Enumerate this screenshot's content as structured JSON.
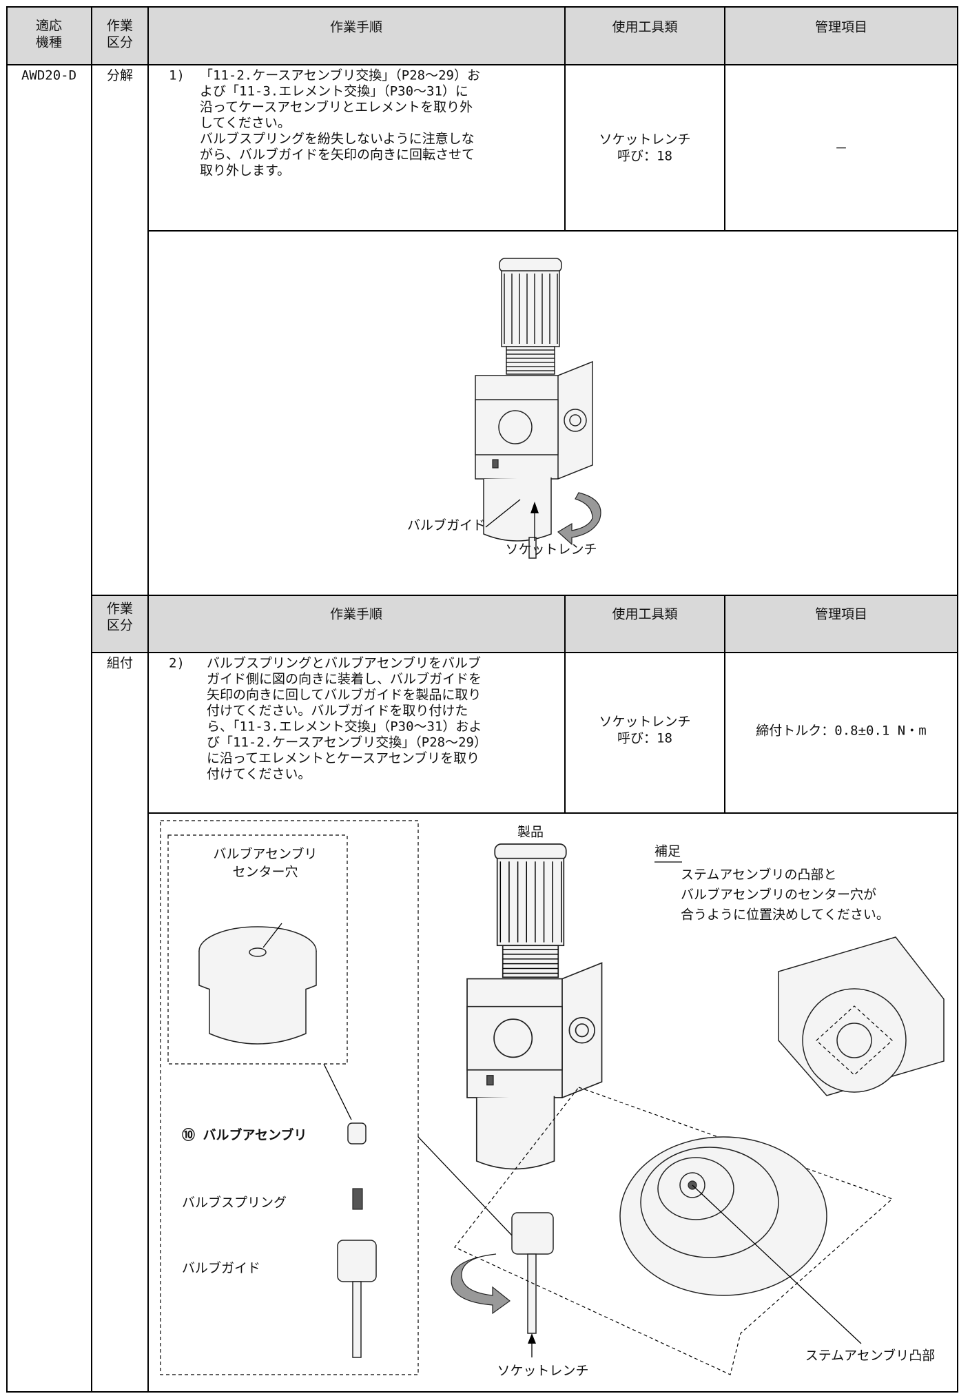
{
  "header": {
    "model": [
      "適応",
      "機種"
    ],
    "category": [
      "作業",
      "区分"
    ],
    "procedure": "作業手順",
    "tools": "使用工具類",
    "control": "管理項目"
  },
  "model": "AWD20-D",
  "steps": [
    {
      "category": "分解",
      "number": "1)",
      "text": [
        "「11-2.ケースアセンブリ交換」（P28～29）お",
        "よび「11-3.エレメント交換」（P30～31）に",
        "沿ってケースアセンブリとエレメントを取り外",
        "してください。",
        "バルブスプリングを紛失しないように注意しな",
        "がら、バルブガイドを矢印の向きに回転させて",
        "取り外します。"
      ],
      "tools": [
        "ソケットレンチ",
        "呼び：18"
      ],
      "control": "－",
      "figure": {
        "valve_guide": "バルブガイド",
        "socket_wrench": "ソケットレンチ"
      }
    },
    {
      "subheader": {
        "category": [
          "作業",
          "区分"
        ],
        "procedure": "作業手順",
        "tools": "使用工具類",
        "control": "管理項目"
      },
      "category": "組付",
      "number": "2)",
      "text": [
        "バルブスプリングとバルブアセンブリをバルブ",
        "ガイド側に図の向きに装着し、バルブガイドを",
        "矢印の向きに回してバルブガイドを製品に取り",
        "付けてください。バルブガイドを取り付けた",
        "ら、「11-3.エレメント交換」（P30～31）およ",
        "び「11-2.ケースアセンブリ交換」（P28～29）",
        "に沿ってエレメントとケースアセンブリを取り",
        "付けてください。"
      ],
      "tools": [
        "ソケットレンチ",
        "呼び：18"
      ],
      "control": "締付トルク：0.8±0.1 N・m",
      "figure": {
        "product": "製品",
        "note_title": "補足",
        "note": [
          "ステムアセンブリの凸部と",
          "バルブアセンブリのセンター穴が",
          "合うように位置決めしてください。"
        ],
        "center_hole": [
          "バルブアセンブリ",
          "センター穴"
        ],
        "part_10": "⑩ バルブアセンブリ",
        "valve_spring": "バルブスプリング",
        "valve_guide": "バルブガイド",
        "socket_wrench": "ソケットレンチ",
        "stem_boss": "ステムアセンブリ凸部"
      }
    }
  ]
}
